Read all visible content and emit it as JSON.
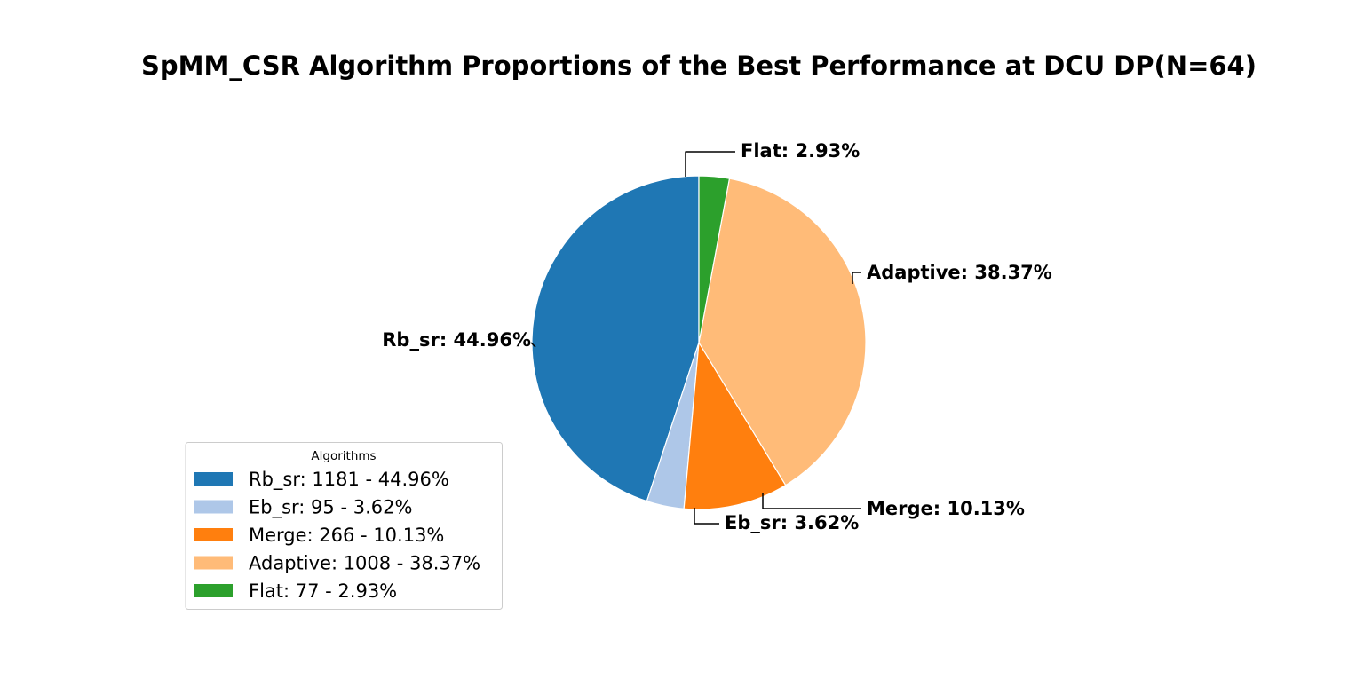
{
  "chart_data": {
    "type": "pie",
    "title": "SpMM_CSR Algorithm Proportions of the Best Performance at DCU DP(N=64)",
    "legend": {
      "title": "Algorithms",
      "placement": "lower-left"
    },
    "slices": [
      {
        "name": "Rb_sr",
        "count": 1181,
        "percent": 44.96,
        "color": "#1f77b4",
        "label": "Rb_sr: 44.96%",
        "legend_label": "Rb_sr: 1181 - 44.96%"
      },
      {
        "name": "Eb_sr",
        "count": 95,
        "percent": 3.62,
        "color": "#aec7e8",
        "label": "Eb_sr: 3.62%",
        "legend_label": "Eb_sr: 95 - 3.62%"
      },
      {
        "name": "Merge",
        "count": 266,
        "percent": 10.13,
        "color": "#ff7f0e",
        "label": "Merge: 10.13%",
        "legend_label": "Merge: 266 - 10.13%"
      },
      {
        "name": "Adaptive",
        "count": 1008,
        "percent": 38.37,
        "color": "#ffbb78",
        "label": "Adaptive: 38.37%",
        "legend_label": "Adaptive: 1008 - 38.37%"
      },
      {
        "name": "Flat",
        "count": 77,
        "percent": 2.93,
        "color": "#2ca02c",
        "label": "Flat: 2.93%",
        "legend_label": "Flat: 77 - 2.93%"
      }
    ]
  }
}
